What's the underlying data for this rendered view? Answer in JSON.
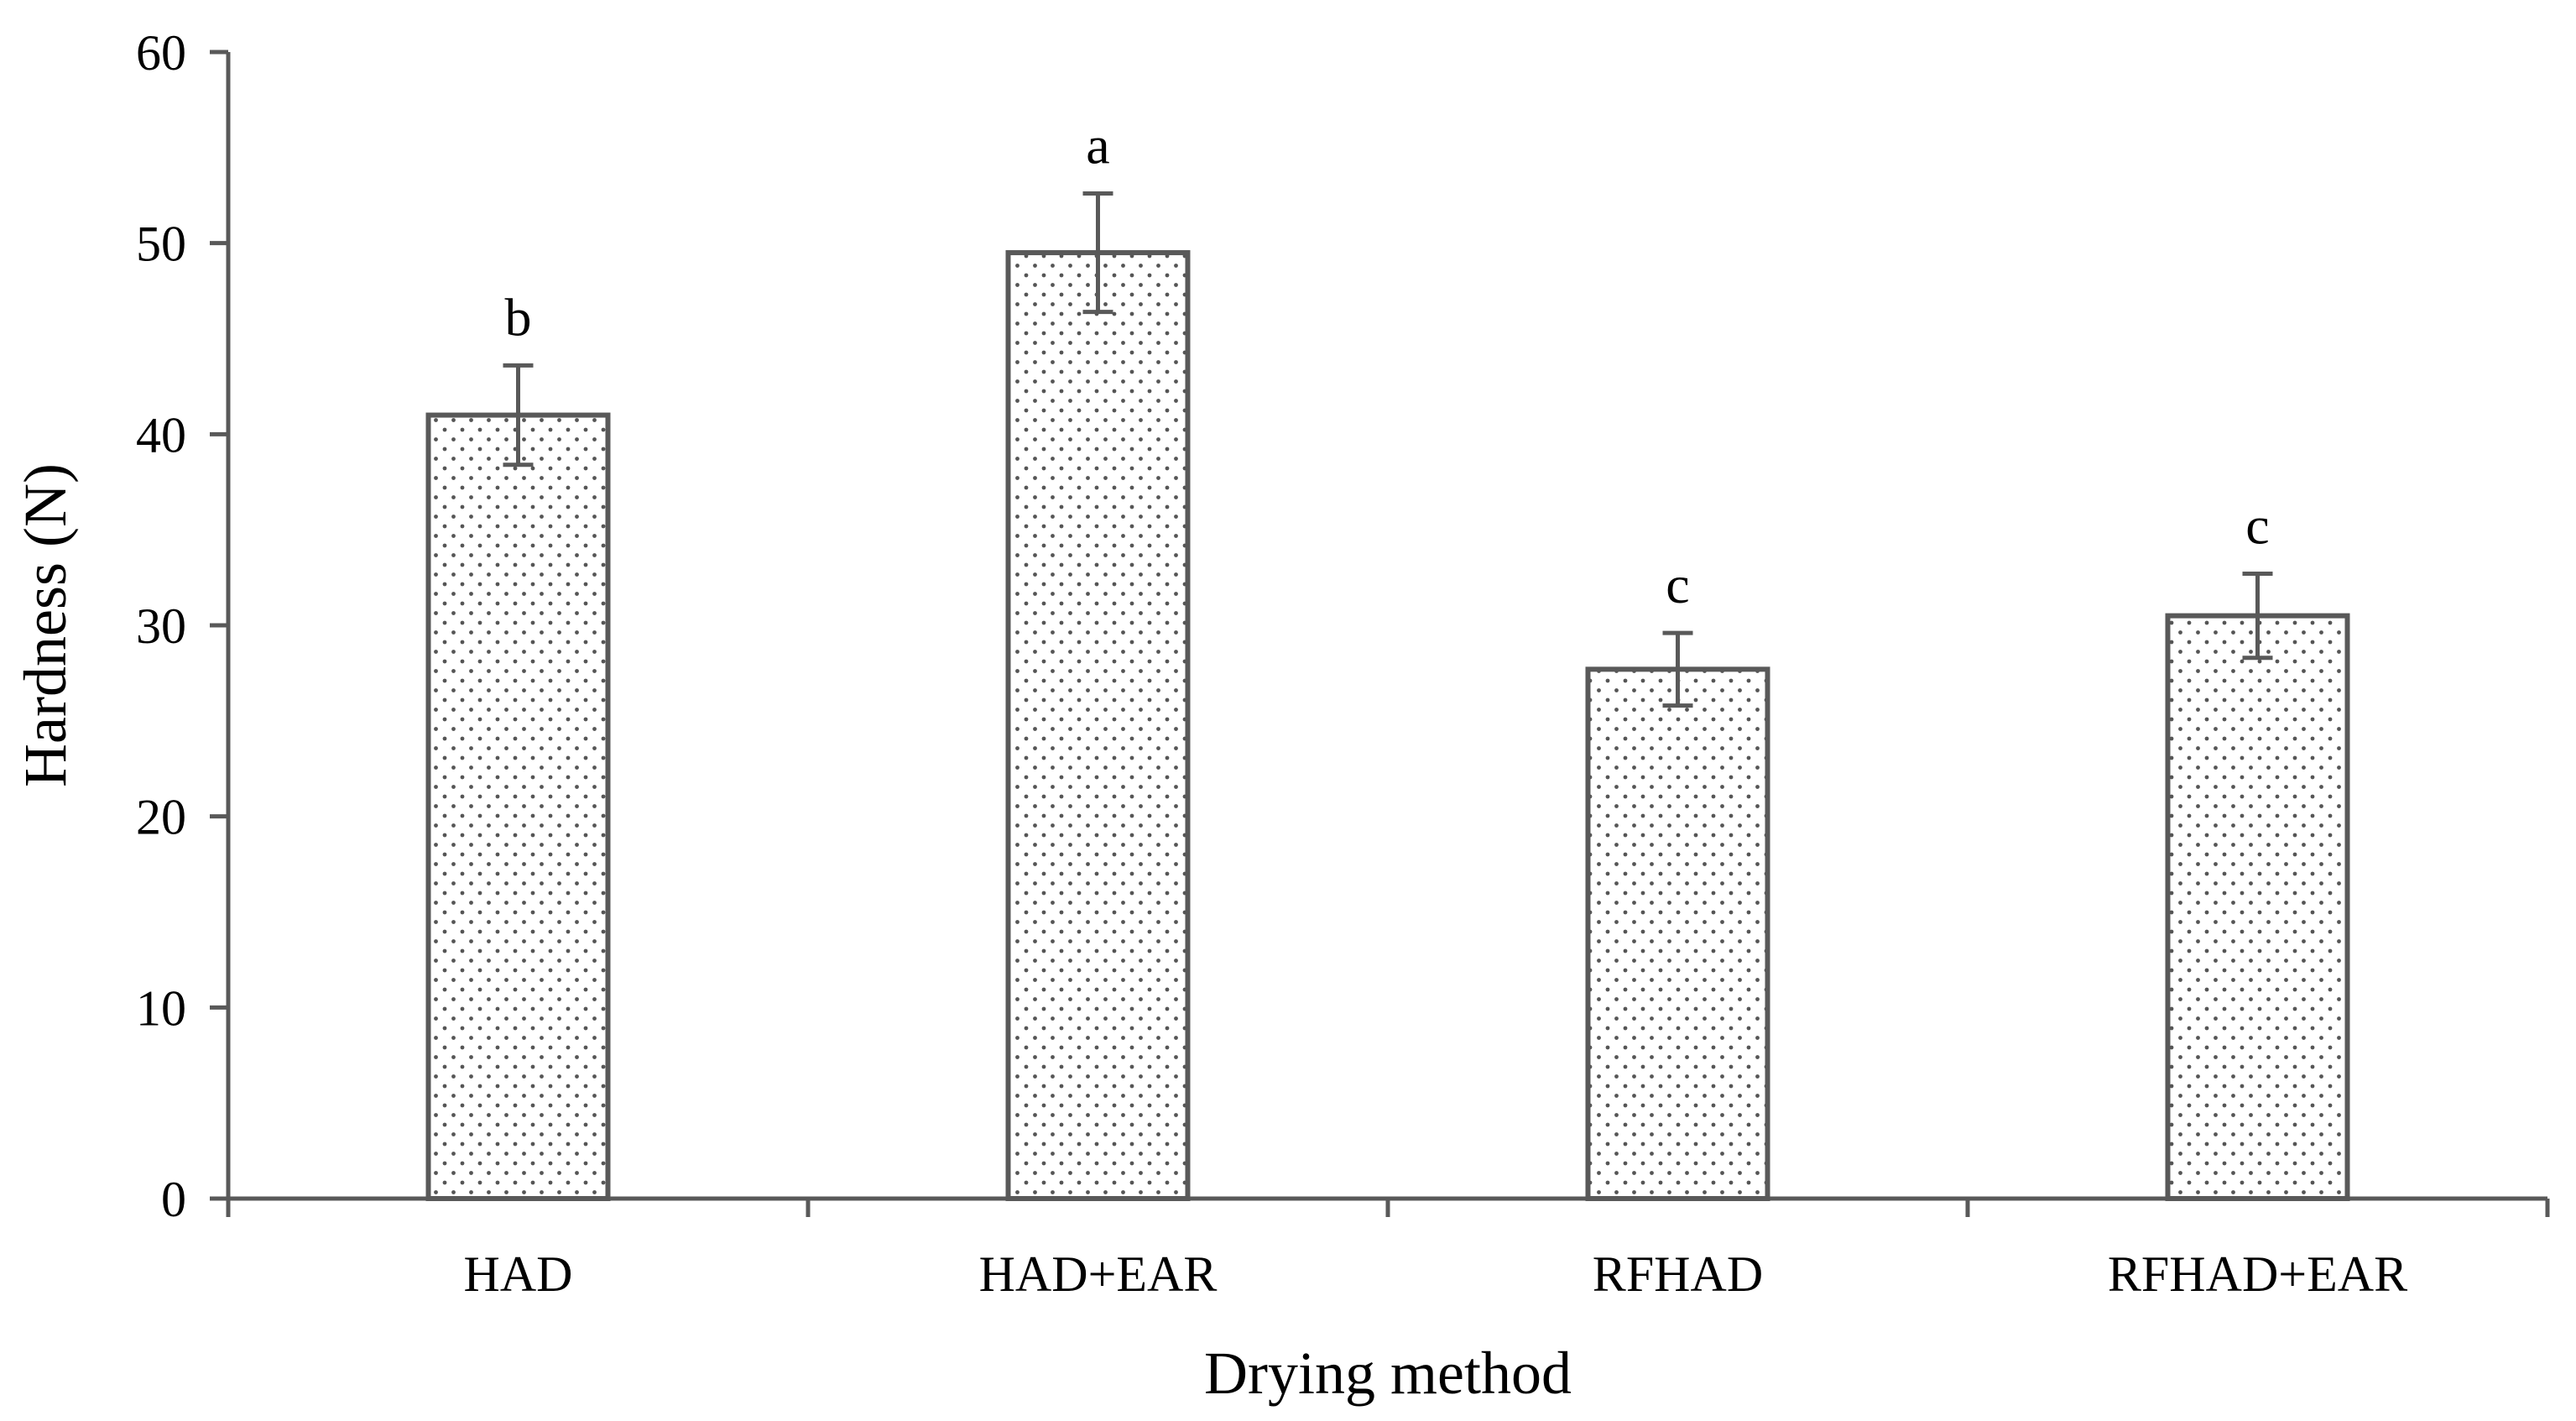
{
  "chart_data": {
    "type": "bar",
    "title": "",
    "xlabel": "Drying method",
    "ylabel": "Hardness (N)",
    "categories": [
      "HAD",
      "HAD+EAR",
      "RFHAD",
      "RFHAD+EAR"
    ],
    "values": [
      41.0,
      49.5,
      27.7,
      30.5
    ],
    "error": [
      2.6,
      3.1,
      1.9,
      2.2
    ],
    "significance_labels": [
      "b",
      "a",
      "c",
      "c"
    ],
    "ylim": [
      0,
      60
    ],
    "yticks": [
      0,
      10,
      20,
      30,
      40,
      50,
      60
    ],
    "ytick_labels": [
      "0",
      "10",
      "20",
      "30",
      "40",
      "50",
      "60"
    ],
    "grid": false,
    "legend": "none",
    "bar_fill": "dotted pattern",
    "colors": {
      "bar_stroke": "#595959",
      "bar_dots": "#555555",
      "axis": "#595959",
      "error_bar": "#595959",
      "text": "#000000"
    }
  }
}
